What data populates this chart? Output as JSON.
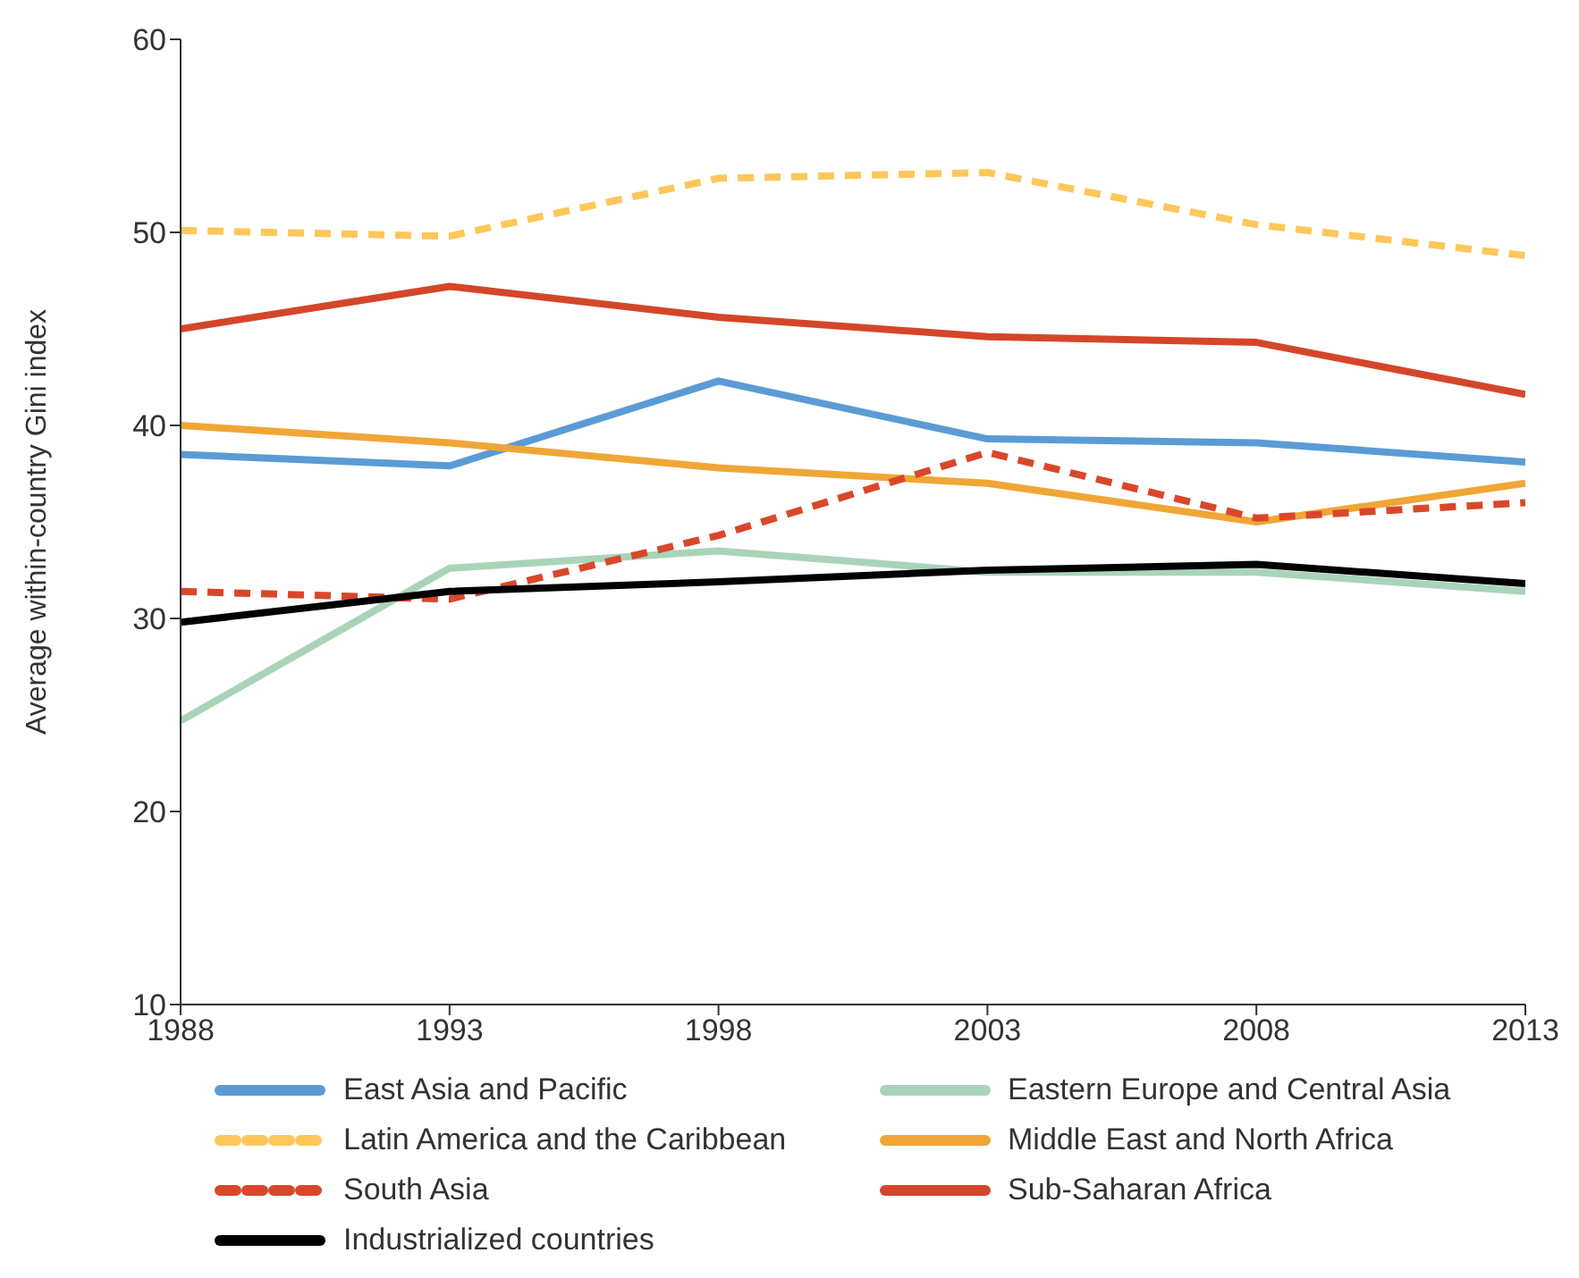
{
  "chart_data": {
    "type": "line",
    "ylabel": "Average within-country Gini index",
    "x": [
      1988,
      1993,
      1998,
      2003,
      2008,
      2013
    ],
    "xlim": [
      1988,
      2013
    ],
    "xticks": [
      1988,
      1993,
      1998,
      2003,
      2008,
      2013
    ],
    "ylim": [
      10,
      60
    ],
    "yticks": [
      10,
      20,
      30,
      40,
      50,
      60
    ],
    "grid": false,
    "legend": "bottom",
    "marker": "none",
    "series": [
      {
        "name": "East Asia and Pacific",
        "color": "#5b9bd5",
        "line_style": "solid",
        "values": [
          38.5,
          37.9,
          42.3,
          39.3,
          39.1,
          38.1
        ]
      },
      {
        "name": "Eastern Europe and Central Asia",
        "color": "#a9d4b8",
        "line_style": "solid",
        "values": [
          24.7,
          32.6,
          33.5,
          32.4,
          32.4,
          31.4
        ]
      },
      {
        "name": "Latin America and the Caribbean",
        "color": "#fdc75a",
        "line_style": "dashed",
        "values": [
          50.1,
          49.8,
          52.8,
          53.1,
          50.4,
          48.8
        ]
      },
      {
        "name": "Middle East and North Africa",
        "color": "#f0a637",
        "line_style": "solid",
        "values": [
          40.0,
          39.1,
          37.8,
          37.0,
          35.0,
          37.0
        ]
      },
      {
        "name": "South Asia",
        "color": "#d9472b",
        "line_style": "dashed",
        "values": [
          31.4,
          31.0,
          34.3,
          38.6,
          35.2,
          36.0
        ]
      },
      {
        "name": "Sub-Saharan Africa",
        "color": "#d4462a",
        "line_style": "solid",
        "values": [
          45.0,
          47.2,
          45.6,
          44.6,
          44.3,
          41.6
        ]
      },
      {
        "name": "Industrialized countries",
        "color": "#000000",
        "line_style": "solid",
        "values": [
          29.8,
          31.4,
          31.9,
          32.5,
          32.8,
          31.8
        ]
      }
    ]
  }
}
